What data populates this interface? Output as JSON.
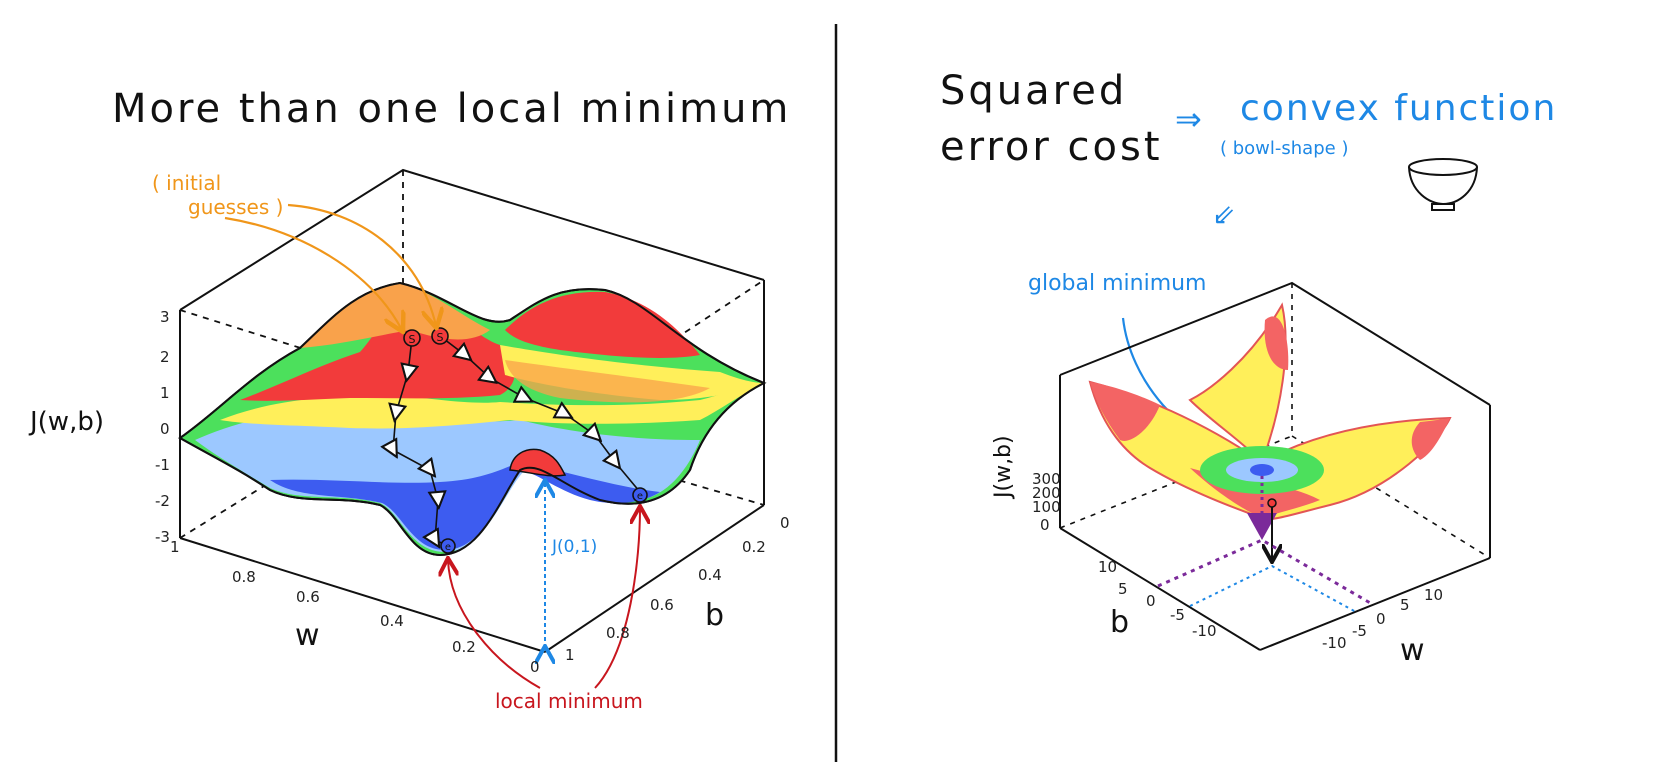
{
  "left_panel": {
    "title": "More than one local minimum",
    "initial_guesses": [
      "( initial",
      "guesses )"
    ],
    "zlabel": "J(w,b)",
    "xlabel": "w",
    "ylabel": "b",
    "z_ticks": [
      "3",
      "2",
      "1",
      "0",
      "-1",
      "-2",
      "-3"
    ],
    "w_ticks": [
      "1",
      "0.8",
      "0.6",
      "0.4",
      "0.2",
      "0"
    ],
    "b_ticks": [
      "0",
      "0.2",
      "0.4",
      "0.6",
      "0.8",
      "1"
    ],
    "start_marker": "S",
    "end_marker": "e",
    "j_annotation": "J(0,1)",
    "local_minimum_label": "local minimum",
    "colors": {
      "red": "#f23b3b",
      "orange": "#f9a24b",
      "yellow": "#ffef5a",
      "green": "#4ce05c",
      "lightblue": "#9cc8ff",
      "blue": "#3d5cf0",
      "annotation_orange": "#f0961a",
      "annotation_red": "#c8161e",
      "annotation_blue": "#1e88e5"
    }
  },
  "right_panel": {
    "title_line1": "Squared",
    "title_line2": "error cost",
    "arrow": "⇒",
    "convex_label": "convex function",
    "bowl_label": "( bowl-shape )",
    "down_arrow": "⇙",
    "global_min_label": "global minimum",
    "zlabel": "J(w,b)",
    "z_ticks": [
      "300",
      "200",
      "100",
      "0"
    ],
    "xlabel": "w",
    "ylabel": "b",
    "b_ticks": [
      "10",
      "5",
      "0",
      "-5",
      "-10"
    ],
    "w_ticks": [
      "-10",
      "-5",
      "0",
      "5",
      "10"
    ],
    "bowl_icon": "bowl-icon"
  }
}
